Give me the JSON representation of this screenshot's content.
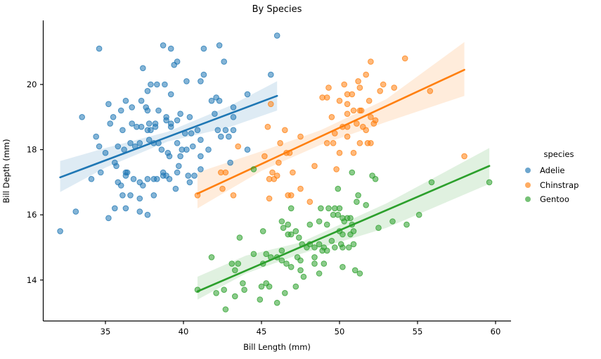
{
  "figure": {
    "background": "#ffffff"
  },
  "chart_data": {
    "type": "scatter",
    "title": "By Species",
    "xlabel": "Bill Length (mm)",
    "ylabel": "Bill Depth (mm)",
    "xlim": [
      31.0,
      61.3
    ],
    "ylim": [
      12.7,
      21.9
    ],
    "xticks": [
      35,
      40,
      45,
      50,
      55,
      60
    ],
    "yticks": [
      14,
      16,
      18,
      20
    ],
    "grid": false,
    "legend": {
      "title": "species",
      "position": "right"
    },
    "series": [
      {
        "name": "Adelie",
        "color": "#1f77b4",
        "regression": {
          "x1": 32.1,
          "y1": 17.15,
          "x2": 46.0,
          "y2": 19.65
        },
        "band": {
          "x": [
            32.1,
            35,
            39,
            43,
            46
          ],
          "low": [
            16.7,
            17.45,
            18.25,
            18.7,
            19.2
          ],
          "high": [
            17.65,
            18.05,
            18.55,
            19.35,
            20.1
          ]
        },
        "points": [
          [
            34.6,
            21.1
          ],
          [
            38.7,
            21.2
          ],
          [
            39.2,
            21.1
          ],
          [
            39.6,
            20.7
          ],
          [
            39.4,
            20.6
          ],
          [
            37.4,
            20.5
          ],
          [
            40.2,
            20.1
          ],
          [
            37.9,
            20.0
          ],
          [
            38.3,
            20.0
          ],
          [
            38.8,
            20.0
          ],
          [
            37.7,
            19.8
          ],
          [
            39.2,
            19.7
          ],
          [
            35.2,
            19.4
          ],
          [
            36.3,
            19.5
          ],
          [
            36.7,
            19.3
          ],
          [
            36.0,
            19.2
          ],
          [
            37.3,
            19.5
          ],
          [
            37.6,
            19.3
          ],
          [
            37.7,
            19.2
          ],
          [
            38.4,
            19.2
          ],
          [
            39.8,
            19.1
          ],
          [
            38.9,
            19.0
          ],
          [
            33.5,
            19.0
          ],
          [
            35.5,
            19.0
          ],
          [
            40.4,
            19.0
          ],
          [
            46.0,
            21.5
          ],
          [
            41.3,
            21.1
          ],
          [
            42.3,
            21.2
          ],
          [
            42.6,
            20.7
          ],
          [
            41.3,
            20.3
          ],
          [
            41.1,
            20.1
          ],
          [
            45.6,
            20.3
          ],
          [
            44.1,
            19.7
          ],
          [
            41.8,
            19.5
          ],
          [
            42.1,
            19.6
          ],
          [
            42.3,
            19.5
          ],
          [
            43.2,
            19.3
          ],
          [
            42.0,
            19.1
          ],
          [
            43.2,
            19.0
          ],
          [
            35.3,
            18.8
          ],
          [
            36.7,
            18.8
          ],
          [
            37.8,
            18.8
          ],
          [
            38.2,
            18.8
          ],
          [
            38.9,
            18.9
          ],
          [
            39.2,
            18.8
          ],
          [
            39.6,
            18.9
          ],
          [
            36.1,
            18.6
          ],
          [
            37.0,
            18.7
          ],
          [
            37.3,
            18.7
          ],
          [
            37.7,
            18.6
          ],
          [
            37.9,
            18.6
          ],
          [
            38.2,
            18.7
          ],
          [
            39.2,
            18.7
          ],
          [
            40.1,
            18.5
          ],
          [
            40.5,
            18.5
          ],
          [
            40.9,
            18.6
          ],
          [
            34.4,
            18.4
          ],
          [
            34.6,
            18.1
          ],
          [
            35.0,
            17.9
          ],
          [
            35.8,
            18.1
          ],
          [
            36.2,
            18.0
          ],
          [
            36.6,
            18.2
          ],
          [
            36.9,
            18.1
          ],
          [
            37.2,
            18.2
          ],
          [
            37.8,
            18.3
          ],
          [
            38.1,
            18.2
          ],
          [
            38.4,
            18.2
          ],
          [
            38.6,
            18.0
          ],
          [
            39.0,
            17.9
          ],
          [
            39.1,
            17.8
          ],
          [
            39.6,
            18.2
          ],
          [
            39.9,
            18.0
          ],
          [
            40.2,
            18.0
          ],
          [
            39.8,
            17.8
          ],
          [
            40.6,
            18.1
          ],
          [
            41.1,
            18.3
          ],
          [
            42.2,
            18.6
          ],
          [
            42.7,
            18.6
          ],
          [
            43.2,
            18.6
          ],
          [
            42.9,
            18.4
          ],
          [
            42.4,
            18.4
          ],
          [
            41.6,
            18.0
          ],
          [
            41.1,
            17.8
          ],
          [
            43.0,
            17.6
          ],
          [
            44.1,
            18.0
          ],
          [
            41.1,
            17.4
          ],
          [
            35.6,
            17.6
          ],
          [
            35.7,
            17.5
          ],
          [
            36.3,
            17.3
          ],
          [
            36.4,
            17.3
          ],
          [
            36.3,
            17.2
          ],
          [
            36.8,
            17.1
          ],
          [
            34.7,
            17.3
          ],
          [
            34.1,
            17.1
          ],
          [
            36.0,
            16.9
          ],
          [
            35.8,
            17.0
          ],
          [
            37.2,
            17.0
          ],
          [
            37.4,
            16.9
          ],
          [
            37.7,
            17.1
          ],
          [
            38.1,
            17.1
          ],
          [
            38.3,
            17.1
          ],
          [
            38.7,
            17.2
          ],
          [
            39.1,
            17.1
          ],
          [
            38.7,
            17.3
          ],
          [
            38.9,
            17.2
          ],
          [
            39.7,
            17.5
          ],
          [
            39.6,
            17.3
          ],
          [
            40.3,
            17.2
          ],
          [
            40.7,
            17.2
          ],
          [
            40.4,
            17.0
          ],
          [
            36.1,
            16.6
          ],
          [
            36.6,
            16.6
          ],
          [
            37.2,
            16.5
          ],
          [
            38.1,
            16.6
          ],
          [
            39.5,
            16.8
          ],
          [
            33.1,
            16.1
          ],
          [
            35.6,
            16.2
          ],
          [
            36.3,
            16.2
          ],
          [
            37.2,
            16.1
          ],
          [
            35.2,
            15.9
          ],
          [
            37.7,
            16.0
          ],
          [
            32.1,
            15.5
          ]
        ]
      },
      {
        "name": "Chinstrap",
        "color": "#ff7f0e",
        "regression": {
          "x1": 40.9,
          "y1": 16.65,
          "x2": 58.0,
          "y2": 20.45
        },
        "band": {
          "x": [
            40.9,
            45,
            48.8,
            53,
            58
          ],
          "low": [
            16.2,
            17.35,
            18.15,
            18.85,
            19.65
          ],
          "high": [
            17.3,
            17.95,
            18.6,
            19.55,
            21.3
          ]
        },
        "points": [
          [
            49.3,
            19.9
          ],
          [
            50.3,
            20.0
          ],
          [
            50.5,
            19.7
          ],
          [
            50.8,
            19.7
          ],
          [
            50.0,
            19.5
          ],
          [
            48.9,
            19.6
          ],
          [
            49.2,
            19.6
          ],
          [
            49.5,
            19.0
          ],
          [
            50.5,
            19.1
          ],
          [
            50.9,
            19.2
          ],
          [
            51.3,
            19.2
          ],
          [
            45.6,
            19.4
          ],
          [
            45.4,
            18.7
          ],
          [
            46.5,
            18.6
          ],
          [
            52.0,
            20.7
          ],
          [
            54.2,
            20.8
          ],
          [
            51.7,
            20.3
          ],
          [
            51.3,
            19.9
          ],
          [
            51.2,
            20.1
          ],
          [
            52.8,
            20.0
          ],
          [
            52.6,
            19.8
          ],
          [
            53.5,
            19.9
          ],
          [
            55.8,
            19.8
          ],
          [
            51.9,
            19.5
          ],
          [
            51.4,
            19.2
          ],
          [
            52.0,
            19.0
          ],
          [
            51.5,
            18.7
          ],
          [
            52.2,
            18.8
          ],
          [
            51.3,
            18.2
          ],
          [
            52.0,
            18.2
          ],
          [
            58.0,
            17.8
          ],
          [
            46.2,
            18.2
          ],
          [
            43.5,
            18.1
          ],
          [
            46.6,
            17.9
          ],
          [
            46.8,
            17.9
          ],
          [
            45.2,
            17.8
          ],
          [
            42.4,
            17.3
          ],
          [
            42.7,
            17.3
          ],
          [
            45.7,
            17.3
          ],
          [
            46.0,
            17.2
          ],
          [
            45.5,
            17.1
          ],
          [
            45.8,
            17.1
          ],
          [
            46.1,
            17.6
          ],
          [
            47.0,
            17.3
          ],
          [
            48.4,
            17.5
          ],
          [
            49.8,
            17.4
          ],
          [
            42.5,
            16.8
          ],
          [
            43.2,
            16.6
          ],
          [
            46.7,
            16.6
          ],
          [
            46.9,
            16.6
          ],
          [
            47.5,
            16.8
          ],
          [
            48.1,
            16.4
          ],
          [
            40.9,
            16.6
          ],
          [
            45.5,
            16.5
          ],
          [
            47.5,
            18.4
          ],
          [
            49.2,
            18.2
          ],
          [
            49.6,
            18.2
          ],
          [
            50.0,
            17.9
          ],
          [
            50.9,
            17.9
          ],
          [
            51.8,
            18.2
          ],
          [
            50.5,
            18.4
          ],
          [
            51.7,
            18.6
          ],
          [
            50.2,
            18.7
          ],
          [
            50.5,
            18.7
          ],
          [
            51.1,
            18.8
          ],
          [
            49.7,
            18.5
          ],
          [
            52.3,
            18.9
          ],
          [
            50.5,
            19.4
          ]
        ]
      },
      {
        "name": "Gentoo",
        "color": "#2ca02c",
        "regression": {
          "x1": 40.9,
          "y1": 13.65,
          "x2": 59.6,
          "y2": 17.5
        },
        "band": {
          "x": [
            40.9,
            44,
            47.5,
            53,
            59.6
          ],
          "low": [
            13.4,
            14.2,
            14.8,
            15.6,
            16.95
          ],
          "high": [
            14.1,
            14.75,
            15.15,
            16.35,
            18.05
          ]
        },
        "points": [
          [
            46.3,
            15.8
          ],
          [
            48.1,
            15.7
          ],
          [
            48.7,
            15.8
          ],
          [
            49.2,
            15.7
          ],
          [
            45.1,
            15.5
          ],
          [
            46.9,
            15.4
          ],
          [
            46.7,
            15.4
          ],
          [
            47.2,
            15.5
          ],
          [
            47.4,
            15.3
          ],
          [
            43.6,
            15.3
          ],
          [
            50.0,
            15.5
          ],
          [
            50.7,
            15.4
          ],
          [
            50.2,
            15.4
          ],
          [
            50.9,
            15.5
          ],
          [
            47.6,
            15.1
          ],
          [
            47.9,
            15.0
          ],
          [
            48.1,
            15.1
          ],
          [
            48.4,
            15.0
          ],
          [
            48.7,
            15.1
          ],
          [
            48.9,
            14.9
          ],
          [
            49.0,
            15.0
          ],
          [
            49.5,
            15.2
          ],
          [
            49.7,
            15.0
          ],
          [
            50.1,
            15.1
          ],
          [
            50.2,
            15.0
          ],
          [
            50.6,
            15.0
          ],
          [
            50.9,
            15.1
          ],
          [
            41.8,
            14.7
          ],
          [
            43.1,
            14.5
          ],
          [
            43.5,
            14.5
          ],
          [
            43.3,
            14.3
          ],
          [
            43.8,
            13.9
          ],
          [
            44.5,
            14.8
          ],
          [
            45.3,
            14.8
          ],
          [
            45.1,
            14.5
          ],
          [
            45.6,
            14.7
          ],
          [
            46.0,
            14.7
          ],
          [
            46.3,
            14.9
          ],
          [
            46.3,
            14.6
          ],
          [
            46.6,
            14.5
          ],
          [
            46.9,
            14.4
          ],
          [
            47.3,
            14.7
          ],
          [
            47.5,
            14.6
          ],
          [
            47.5,
            14.3
          ],
          [
            47.7,
            14.1
          ],
          [
            48.4,
            14.7
          ],
          [
            48.4,
            14.5
          ],
          [
            48.7,
            14.2
          ],
          [
            49.0,
            14.5
          ],
          [
            49.2,
            14.9
          ],
          [
            50.2,
            14.4
          ],
          [
            51.0,
            14.3
          ],
          [
            42.1,
            13.6
          ],
          [
            42.6,
            13.7
          ],
          [
            43.3,
            13.5
          ],
          [
            42.7,
            13.1
          ],
          [
            43.9,
            13.7
          ],
          [
            44.9,
            13.4
          ],
          [
            45.0,
            13.8
          ],
          [
            45.3,
            13.9
          ],
          [
            45.5,
            13.8
          ],
          [
            46.0,
            13.3
          ],
          [
            46.5,
            13.6
          ],
          [
            47.2,
            13.8
          ],
          [
            50.8,
            17.3
          ],
          [
            44.5,
            17.4
          ],
          [
            49.9,
            16.8
          ],
          [
            48.8,
            16.2
          ],
          [
            49.3,
            16.2
          ],
          [
            49.7,
            16.2
          ],
          [
            50.0,
            16.2
          ],
          [
            49.9,
            16.0
          ],
          [
            49.6,
            16.0
          ],
          [
            50.2,
            15.9
          ],
          [
            50.5,
            15.9
          ],
          [
            50.7,
            15.9
          ],
          [
            50.3,
            15.8
          ],
          [
            50.8,
            15.7
          ],
          [
            46.9,
            16.2
          ],
          [
            46.7,
            15.7
          ],
          [
            46.4,
            15.6
          ],
          [
            52.1,
            17.2
          ],
          [
            52.3,
            17.1
          ],
          [
            51.2,
            16.6
          ],
          [
            51.1,
            16.4
          ],
          [
            51.7,
            16.3
          ],
          [
            55.9,
            17.0
          ],
          [
            59.6,
            17.0
          ],
          [
            55.1,
            16.0
          ],
          [
            53.4,
            15.8
          ],
          [
            54.3,
            15.7
          ],
          [
            52.5,
            15.6
          ],
          [
            51.3,
            14.2
          ],
          [
            40.9,
            13.7
          ]
        ]
      }
    ]
  }
}
